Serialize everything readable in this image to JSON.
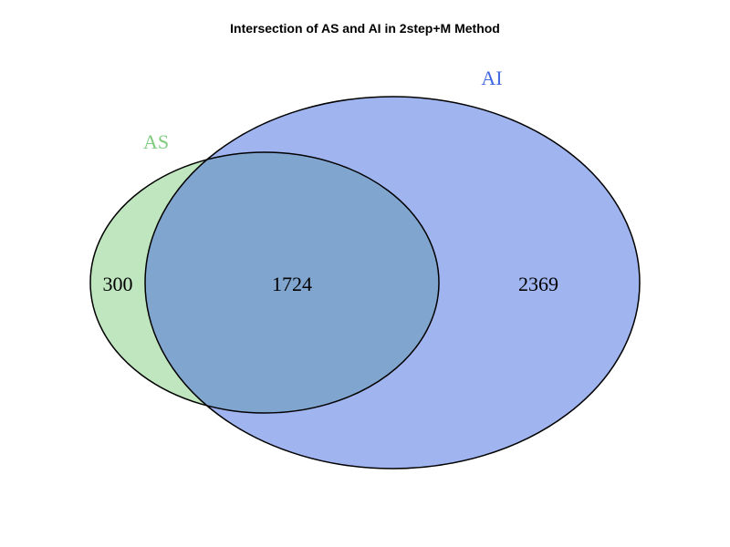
{
  "title": "Intersection of AS and AI in 2step+M Method",
  "sets": {
    "as": {
      "label": "AS",
      "color": "#7fcc7f",
      "fill": "#bfe6bf"
    },
    "ai": {
      "label": "AI",
      "color": "#4169e1",
      "fill": "#a0b4ef"
    }
  },
  "overlap_fill": "#80a6d0",
  "counts": {
    "as_only": "300",
    "both": "1724",
    "ai_only": "2369"
  }
}
